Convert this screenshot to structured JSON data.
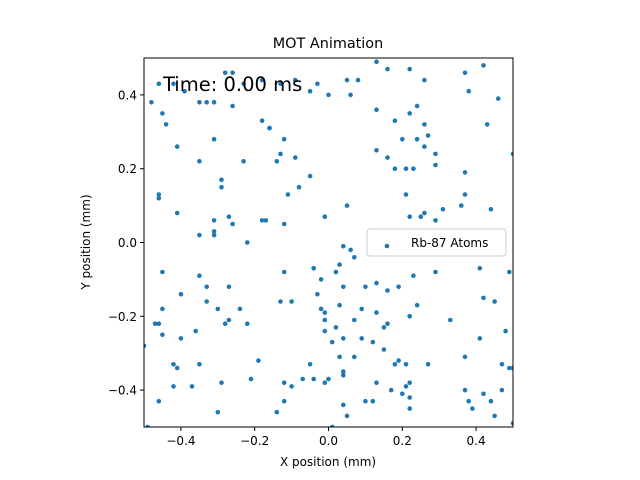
{
  "chart_data": {
    "type": "scatter",
    "title": "MOT Animation",
    "xlabel": "X position (mm)",
    "ylabel": "Y position (mm)",
    "xlim": [
      -0.5,
      0.5
    ],
    "ylim": [
      -0.5,
      0.5
    ],
    "xticks": [
      -0.4,
      -0.2,
      0.0,
      0.2,
      0.4
    ],
    "yticks": [
      -0.4,
      -0.2,
      0.0,
      0.2,
      0.4
    ],
    "xtick_labels": [
      "−0.4",
      "−0.2",
      "0.0",
      "0.2",
      "0.4"
    ],
    "ytick_labels": [
      "−0.4",
      "−0.2",
      "0.0",
      "0.2",
      "0.4"
    ],
    "grid": false,
    "legend_position": "center-right",
    "annotation": "Time: 0.00 ms",
    "series": [
      {
        "name": "Rb-87 Atoms",
        "color": "#1f77b4",
        "points": [
          [
            -0.46,
            0.43
          ],
          [
            -0.42,
            0.43
          ],
          [
            -0.39,
            0.41
          ],
          [
            -0.35,
            0.38
          ],
          [
            -0.28,
            0.46
          ],
          [
            -0.26,
            0.46
          ],
          [
            -0.23,
            0.43
          ],
          [
            -0.18,
            0.44
          ],
          [
            -0.13,
            0.43
          ],
          [
            -0.09,
            0.44
          ],
          [
            -0.05,
            0.41
          ],
          [
            -0.03,
            0.43
          ],
          [
            0.05,
            0.44
          ],
          [
            0.08,
            0.44
          ],
          [
            0.13,
            0.49
          ],
          [
            0.16,
            0.47
          ],
          [
            0.22,
            0.47
          ],
          [
            0.26,
            0.44
          ],
          [
            0.37,
            0.46
          ],
          [
            0.42,
            0.48
          ],
          [
            0.38,
            0.41
          ],
          [
            0.46,
            0.39
          ],
          [
            -0.48,
            0.38
          ],
          [
            -0.45,
            0.35
          ],
          [
            -0.44,
            0.32
          ],
          [
            -0.41,
            0.26
          ],
          [
            -0.33,
            0.38
          ],
          [
            -0.31,
            0.38
          ],
          [
            -0.26,
            0.37
          ],
          [
            -0.18,
            0.33
          ],
          [
            -0.16,
            0.31
          ],
          [
            -0.12,
            0.28
          ],
          [
            -0.09,
            0.23
          ],
          [
            -0.05,
            0.18
          ],
          [
            0.0,
            0.4
          ],
          [
            0.06,
            0.4
          ],
          [
            0.13,
            0.36
          ],
          [
            0.18,
            0.33
          ],
          [
            0.22,
            0.35
          ],
          [
            0.24,
            0.37
          ],
          [
            0.26,
            0.32
          ],
          [
            0.2,
            0.28
          ],
          [
            0.24,
            0.28
          ],
          [
            0.27,
            0.29
          ],
          [
            0.26,
            0.26
          ],
          [
            0.29,
            0.24
          ],
          [
            0.43,
            0.32
          ],
          [
            0.5,
            0.24
          ],
          [
            -0.35,
            0.22
          ],
          [
            -0.31,
            0.28
          ],
          [
            -0.29,
            0.17
          ],
          [
            -0.29,
            0.15
          ],
          [
            -0.23,
            0.22
          ],
          [
            -0.14,
            0.22
          ],
          [
            -0.16,
            0.31
          ],
          [
            -0.13,
            0.24
          ],
          [
            -0.08,
            0.15
          ],
          [
            -0.11,
            0.13
          ],
          [
            0.13,
            0.25
          ],
          [
            0.16,
            0.23
          ],
          [
            0.18,
            0.2
          ],
          [
            0.21,
            0.2
          ],
          [
            0.21,
            0.13
          ],
          [
            0.23,
            0.2
          ],
          [
            0.29,
            0.21
          ],
          [
            0.37,
            0.19
          ],
          [
            0.37,
            0.13
          ],
          [
            -0.46,
            0.13
          ],
          [
            -0.46,
            0.12
          ],
          [
            -0.41,
            0.08
          ],
          [
            -0.31,
            0.06
          ],
          [
            -0.31,
            0.03
          ],
          [
            -0.31,
            0.02
          ],
          [
            -0.35,
            0.02
          ],
          [
            -0.27,
            0.07
          ],
          [
            -0.26,
            0.05
          ],
          [
            -0.18,
            0.06
          ],
          [
            -0.17,
            0.06
          ],
          [
            -0.12,
            0.05
          ],
          [
            -0.01,
            0.07
          ],
          [
            0.05,
            0.1
          ],
          [
            0.22,
            0.07
          ],
          [
            0.25,
            0.07
          ],
          [
            0.26,
            0.08
          ],
          [
            0.29,
            0.06
          ],
          [
            0.31,
            0.09
          ],
          [
            0.36,
            0.1
          ],
          [
            0.44,
            0.09
          ],
          [
            -0.22,
            0.0
          ],
          [
            0.04,
            -0.01
          ],
          [
            0.06,
            -0.02
          ],
          [
            0.07,
            -0.04
          ],
          [
            0.03,
            -0.06
          ],
          [
            -0.04,
            -0.07
          ],
          [
            -0.45,
            -0.08
          ],
          [
            -0.35,
            -0.09
          ],
          [
            -0.33,
            -0.12
          ],
          [
            -0.27,
            -0.12
          ],
          [
            -0.12,
            -0.08
          ],
          [
            -0.02,
            -0.1
          ],
          [
            0.02,
            -0.08
          ],
          [
            0.04,
            -0.12
          ],
          [
            0.1,
            -0.12
          ],
          [
            0.13,
            -0.11
          ],
          [
            0.16,
            -0.13
          ],
          [
            0.19,
            -0.12
          ],
          [
            0.23,
            -0.09
          ],
          [
            0.29,
            -0.08
          ],
          [
            0.41,
            -0.07
          ],
          [
            0.49,
            -0.08
          ],
          [
            -0.4,
            -0.14
          ],
          [
            -0.33,
            -0.16
          ],
          [
            -0.3,
            -0.18
          ],
          [
            -0.24,
            -0.18
          ],
          [
            -0.13,
            -0.16
          ],
          [
            -0.1,
            -0.16
          ],
          [
            -0.03,
            -0.14
          ],
          [
            -0.02,
            -0.18
          ],
          [
            -0.01,
            -0.19
          ],
          [
            0.03,
            -0.17
          ],
          [
            0.09,
            -0.18
          ],
          [
            0.13,
            -0.19
          ],
          [
            0.15,
            -0.23
          ],
          [
            0.16,
            -0.22
          ],
          [
            0.22,
            -0.2
          ],
          [
            0.24,
            -0.17
          ],
          [
            0.42,
            -0.15
          ],
          [
            0.45,
            -0.16
          ],
          [
            -0.45,
            -0.18
          ],
          [
            -0.47,
            -0.22
          ],
          [
            -0.46,
            -0.22
          ],
          [
            -0.45,
            -0.25
          ],
          [
            -0.4,
            -0.26
          ],
          [
            -0.36,
            -0.24
          ],
          [
            -0.27,
            -0.21
          ],
          [
            -0.28,
            -0.22
          ],
          [
            -0.22,
            -0.22
          ],
          [
            -0.01,
            -0.21
          ],
          [
            -0.01,
            -0.24
          ],
          [
            0.02,
            -0.23
          ],
          [
            0.04,
            -0.26
          ],
          [
            0.07,
            -0.21
          ],
          [
            0.09,
            -0.26
          ],
          [
            0.12,
            -0.27
          ],
          [
            0.15,
            -0.29
          ],
          [
            0.33,
            -0.21
          ],
          [
            0.41,
            -0.26
          ],
          [
            0.48,
            -0.24
          ],
          [
            -0.5,
            -0.28
          ],
          [
            -0.42,
            -0.33
          ],
          [
            -0.41,
            -0.34
          ],
          [
            -0.35,
            -0.33
          ],
          [
            -0.19,
            -0.32
          ],
          [
            -0.05,
            -0.33
          ],
          [
            0.01,
            -0.27
          ],
          [
            0.03,
            -0.31
          ],
          [
            0.07,
            -0.31
          ],
          [
            0.18,
            -0.33
          ],
          [
            0.19,
            -0.32
          ],
          [
            0.21,
            -0.33
          ],
          [
            0.27,
            -0.33
          ],
          [
            0.37,
            -0.31
          ],
          [
            0.47,
            -0.33
          ],
          [
            -0.42,
            -0.39
          ],
          [
            -0.37,
            -0.39
          ],
          [
            -0.29,
            -0.38
          ],
          [
            -0.21,
            -0.37
          ],
          [
            -0.12,
            -0.38
          ],
          [
            -0.1,
            -0.39
          ],
          [
            -0.07,
            -0.37
          ],
          [
            -0.04,
            -0.37
          ],
          [
            -0.01,
            -0.38
          ],
          [
            0.0,
            -0.37
          ],
          [
            0.04,
            -0.36
          ],
          [
            0.04,
            -0.35
          ],
          [
            0.13,
            -0.38
          ],
          [
            0.17,
            -0.4
          ],
          [
            0.21,
            -0.39
          ],
          [
            0.22,
            -0.38
          ],
          [
            0.2,
            -0.41
          ],
          [
            0.49,
            -0.34
          ],
          [
            0.5,
            -0.34
          ],
          [
            -0.46,
            -0.43
          ],
          [
            -0.3,
            -0.46
          ],
          [
            -0.14,
            -0.46
          ],
          [
            -0.12,
            -0.43
          ],
          [
            0.01,
            -0.5
          ],
          [
            0.04,
            -0.44
          ],
          [
            0.05,
            -0.47
          ],
          [
            0.1,
            -0.43
          ],
          [
            0.12,
            -0.43
          ],
          [
            0.22,
            -0.42
          ],
          [
            0.22,
            -0.45
          ],
          [
            0.37,
            -0.4
          ],
          [
            0.38,
            -0.43
          ],
          [
            0.39,
            -0.45
          ],
          [
            0.42,
            -0.41
          ],
          [
            0.44,
            -0.43
          ],
          [
            0.45,
            -0.47
          ],
          [
            0.47,
            -0.4
          ],
          [
            0.5,
            -0.49
          ],
          [
            -0.49,
            -0.5
          ]
        ]
      }
    ]
  }
}
